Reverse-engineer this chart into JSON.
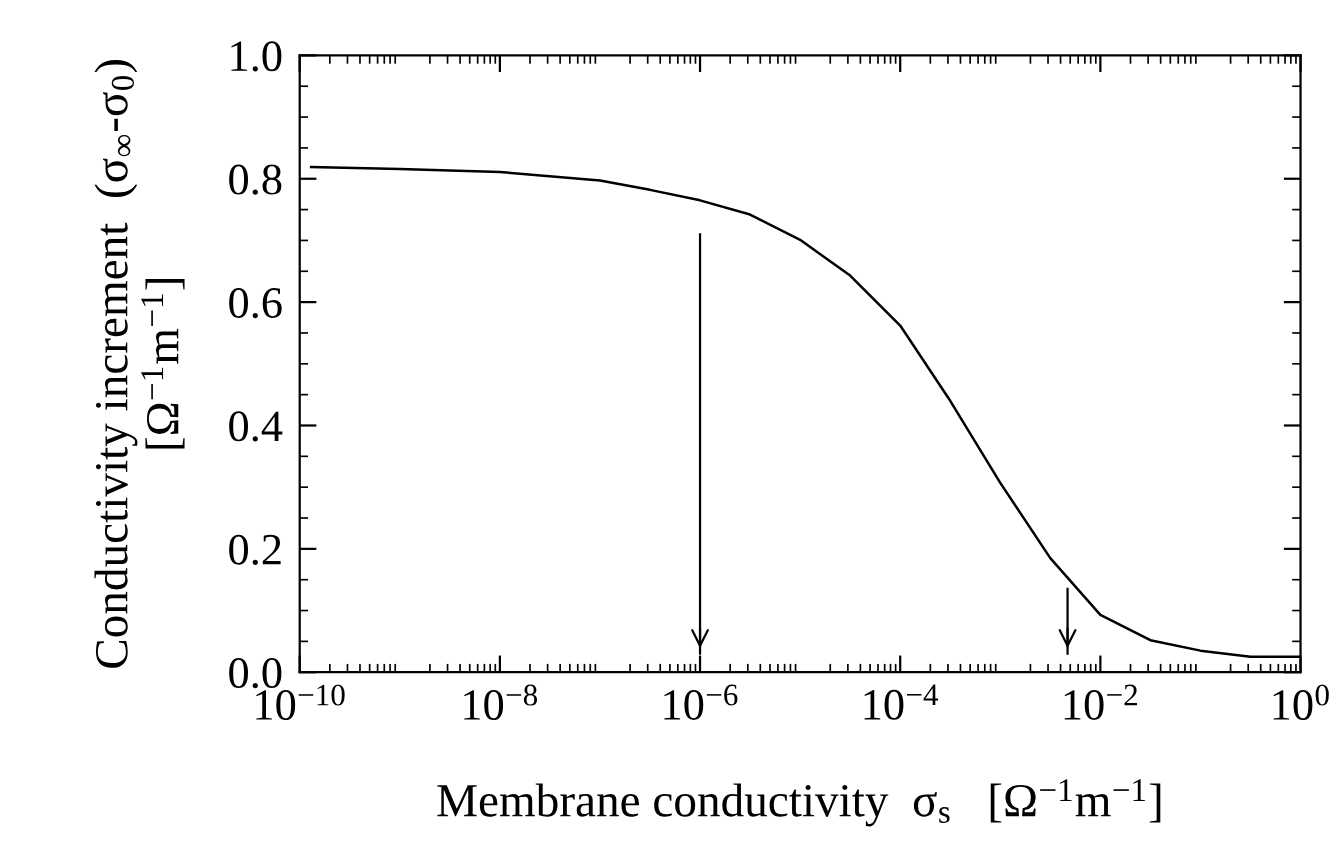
{
  "chart_data": {
    "type": "line",
    "xlabel": "Membrane conductivity  σ$_{s}$   [Ω$^{−1}$m$^{−1}$]",
    "ylabel": "Conductivity increment  (σ$_{∞}$-σ$_{0}$)\n[Ω$^{−1}$m$^{−1}$]",
    "log": "x",
    "grid": false,
    "ref_lines": [
      {
        "axis": "x",
        "value": 1e-06
      },
      {
        "axis": "x",
        "value": 0.0047
      }
    ],
    "marker": "none",
    "line_style": "solid",
    "xlim": [
      1e-10,
      1
    ],
    "ylim": [
      0,
      1.0
    ],
    "xticks": [
      {
        "value": 1e-10,
        "label": "10$^{−10}$"
      },
      {
        "value": 1e-08,
        "label": "10$^{−8}$"
      },
      {
        "value": 1e-06,
        "label": "10$^{−6}$"
      },
      {
        "value": 0.0001,
        "label": "10$^{−4}$"
      },
      {
        "value": 0.01,
        "label": "10$^{−2}$"
      },
      {
        "value": 1,
        "label": "10$^{0}$"
      }
    ],
    "yticks": [
      {
        "value": 0,
        "label": "0.0"
      },
      {
        "value": 0.2,
        "label": "0.2"
      },
      {
        "value": 0.4,
        "label": "0.4"
      },
      {
        "value": 0.6,
        "label": "0.6"
      },
      {
        "value": 0.8,
        "label": "0.8"
      },
      {
        "value": 1.0,
        "label": "1.0"
      }
    ],
    "series": [
      {
        "color": "#000000",
        "x": [
          1.3e-10,
          1e-09,
          1e-08,
          1e-07,
          3.16e-07,
          1e-06,
          3.16e-06,
          1e-05,
          3.16e-05,
          0.0001,
          0.000316,
          0.001,
          0.00316,
          0.01,
          0.0316,
          0.1,
          0.316,
          1
        ],
        "values": [
          0.819,
          0.816,
          0.811,
          0.797,
          0.782,
          0.765,
          0.742,
          0.701,
          0.643,
          0.562,
          0.44,
          0.307,
          0.185,
          0.093,
          0.052,
          0.035,
          0.025,
          0.025
        ]
      }
    ]
  }
}
